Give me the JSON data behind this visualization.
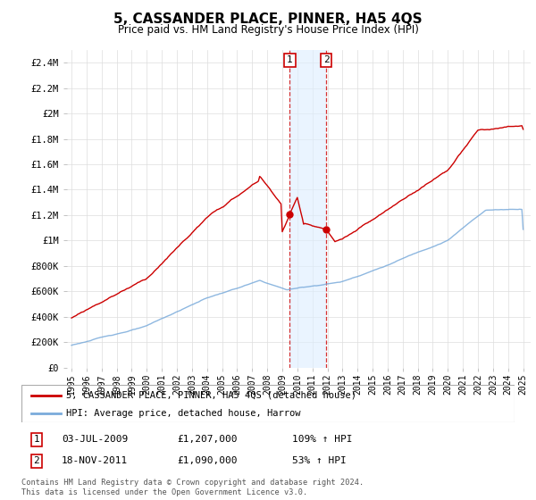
{
  "title": "5, CASSANDER PLACE, PINNER, HA5 4QS",
  "subtitle": "Price paid vs. HM Land Registry's House Price Index (HPI)",
  "legend_line1": "5, CASSANDER PLACE, PINNER, HA5 4QS (detached house)",
  "legend_line2": "HPI: Average price, detached house, Harrow",
  "annotation1_date": "03-JUL-2009",
  "annotation1_price": "£1,207,000",
  "annotation1_hpi": "109% ↑ HPI",
  "annotation2_date": "18-NOV-2011",
  "annotation2_price": "£1,090,000",
  "annotation2_hpi": "53% ↑ HPI",
  "footer": "Contains HM Land Registry data © Crown copyright and database right 2024.\nThis data is licensed under the Open Government Licence v3.0.",
  "hpi_color": "#7aabdb",
  "price_color": "#cc0000",
  "shading_color": "#ddeeff",
  "sale1_x": 2009.5,
  "sale2_x": 2011.92,
  "sale1_y": 1207000,
  "sale2_y": 1090000,
  "ylim": [
    0,
    2500000
  ],
  "xlim": [
    1994.7,
    2025.5
  ],
  "yticks": [
    0,
    200000,
    400000,
    600000,
    800000,
    1000000,
    1200000,
    1400000,
    1600000,
    1800000,
    2000000,
    2200000,
    2400000
  ],
  "ytick_labels": [
    "£0",
    "£200K",
    "£400K",
    "£600K",
    "£800K",
    "£1M",
    "£1.2M",
    "£1.4M",
    "£1.6M",
    "£1.8M",
    "£2M",
    "£2.2M",
    "£2.4M"
  ],
  "xtick_years": [
    1995,
    1996,
    1997,
    1998,
    1999,
    2000,
    2001,
    2002,
    2003,
    2004,
    2005,
    2006,
    2007,
    2008,
    2009,
    2010,
    2011,
    2012,
    2013,
    2014,
    2015,
    2016,
    2017,
    2018,
    2019,
    2020,
    2021,
    2022,
    2023,
    2024,
    2025
  ]
}
